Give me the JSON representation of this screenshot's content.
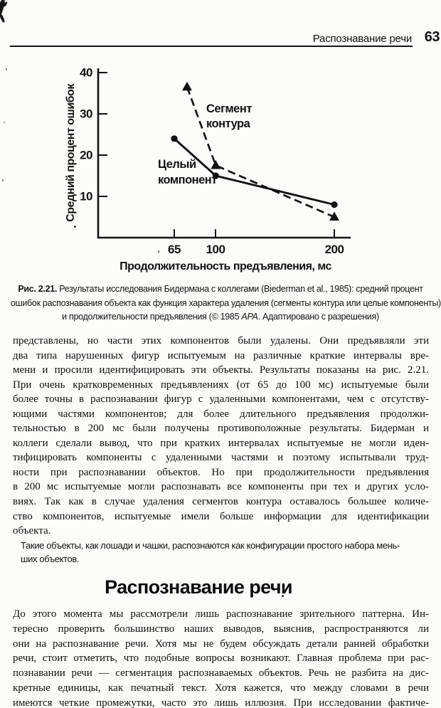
{
  "header": {
    "title": "Распознавание речи",
    "page_number": "63"
  },
  "chart_data": {
    "type": "line",
    "title": "",
    "xlabel": "Продолжительность предъявления, мс",
    "ylabel": "Средний процент ошибок",
    "x_ticks": [
      65,
      100,
      200
    ],
    "y_ticks": [
      10,
      20,
      30,
      40
    ],
    "xlim": [
      0,
      215
    ],
    "ylim": [
      0,
      42
    ],
    "grid": false,
    "legend_position": "inline-annotations",
    "series": [
      {
        "name": "Сегмент контура",
        "style": "dashed",
        "marker": "triangle",
        "x": [
          65,
          100,
          200
        ],
        "values": [
          36.5,
          17.5,
          5
        ]
      },
      {
        "name": "Целый компонент",
        "style": "solid",
        "marker": "circle",
        "x": [
          65,
          100,
          200
        ],
        "values": [
          24,
          15,
          8
        ]
      }
    ]
  },
  "figure": {
    "ylabel": "Средний процент ошибок",
    "xlabel": "Продолжительность предъявления, мс",
    "y_tick_labels": [
      "40",
      "30",
      "20",
      "10"
    ],
    "x_tick_labels": [
      "65",
      "100",
      "200"
    ],
    "legend_dashed_line1": "Сегмент",
    "legend_dashed_line2": "контура",
    "legend_solid_line1": "Целый",
    "legend_solid_line2": "компонент"
  },
  "caption": {
    "fig_label": "Рис. 2.21.",
    "line1_rest": "Результаты исследования Бидермана с коллегами (Biederman et al., 1985): средний процент",
    "line2": "ошибок распознавания объекта как функция характера удаления (сегменты контура или целые компоненты)",
    "line3_pre": "и продолжительности предъявления (© 1985 ",
    "line3_italic": "APA",
    "line3_post": ". Адаптировано с разрешения)"
  },
  "main": {
    "paragraph1_lines": [
      "представлены, но части этих компонентов были удалены. Они предъявляли эти",
      "два типа нарушенных фигур испытуемым на различные краткие интервалы вре-",
      "мени и просили идентифицировать эти объекты. Результаты показаны на рис. 2.21.",
      "При очень кратковременных предъявлениях (от 65 до 100 мс) испытуемые были",
      "более точны в распознавании фигур с удаленными компонентами, чем с отсутству-",
      "ющими частями компонентов; для более длительного предъявления продолжи-",
      "тельностью в 200 мс были получены противоположные результаты. Бидерман и",
      "коллеги сделали вывод, что при кратких интервалах испытуемые не могли иден-",
      "тифицировать компоненты с удаленными частями и поэтому испытывали труд-",
      "ности при распознавании объектов. Но при продолжительности предъявления",
      "в 200 мс испытуемые могли распознавать все компоненты при тех и других усло-",
      "виях. Так как в случае удаления сегментов контура оставалось большее количе-",
      "ство компонентов, испытуемые имели больше информации для идентификации",
      "объекта."
    ],
    "note_lines": [
      "Такие объекты, как лошади и чашки, распознаются как конфигурации простого набора мень-",
      "ших объектов."
    ],
    "section_heading": "Распознавание речи",
    "paragraph2_lines": [
      "До этого момента мы рассмотрели лишь распознавание зрительного паттерна. Ин-",
      "тересно проверить большинство наших выводов, выяснив, распространяются ли",
      "они на распознавание речи. Хотя мы не будем обсуждать детали ранней обработки",
      "речи, стоит отметить, что подобные вопросы возникают. Главная проблема при рас-",
      "познавании речи — сегментация распознаваемых объектов. Речь не разбита на дис-",
      "кретные единицы, как печатный текст. Хотя кажется, что между словами в речи",
      "имеются четкие промежутки, часто это лишь иллюзия. При исследовании фактиче-"
    ]
  }
}
